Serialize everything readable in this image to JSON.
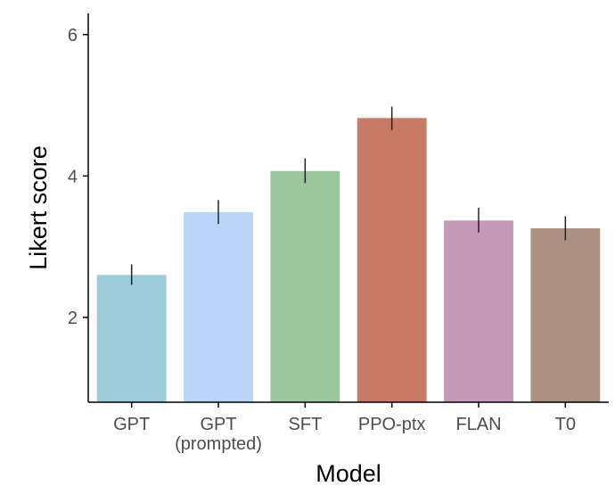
{
  "chart_data": {
    "type": "bar",
    "title": "",
    "xlabel": "Model",
    "ylabel": "Likert score",
    "categories": [
      [
        "GPT"
      ],
      [
        "GPT",
        "(prompted)"
      ],
      [
        "SFT"
      ],
      [
        "PPO-ptx"
      ],
      [
        "FLAN"
      ],
      [
        "T0"
      ]
    ],
    "values": [
      2.6,
      3.49,
      4.07,
      4.82,
      3.37,
      3.26
    ],
    "error_low": [
      2.46,
      3.32,
      3.9,
      4.65,
      3.2,
      3.09
    ],
    "error_high": [
      2.75,
      3.66,
      4.25,
      4.98,
      3.55,
      3.43
    ],
    "colors": [
      "#9dcbd9",
      "#b9d6f8",
      "#9cc69e",
      "#c77b66",
      "#c49ab8",
      "#aa9181"
    ],
    "yticks": [
      2,
      4,
      6
    ],
    "ylim": [
      0.8,
      6.3
    ],
    "grid": false,
    "legend": "none"
  }
}
